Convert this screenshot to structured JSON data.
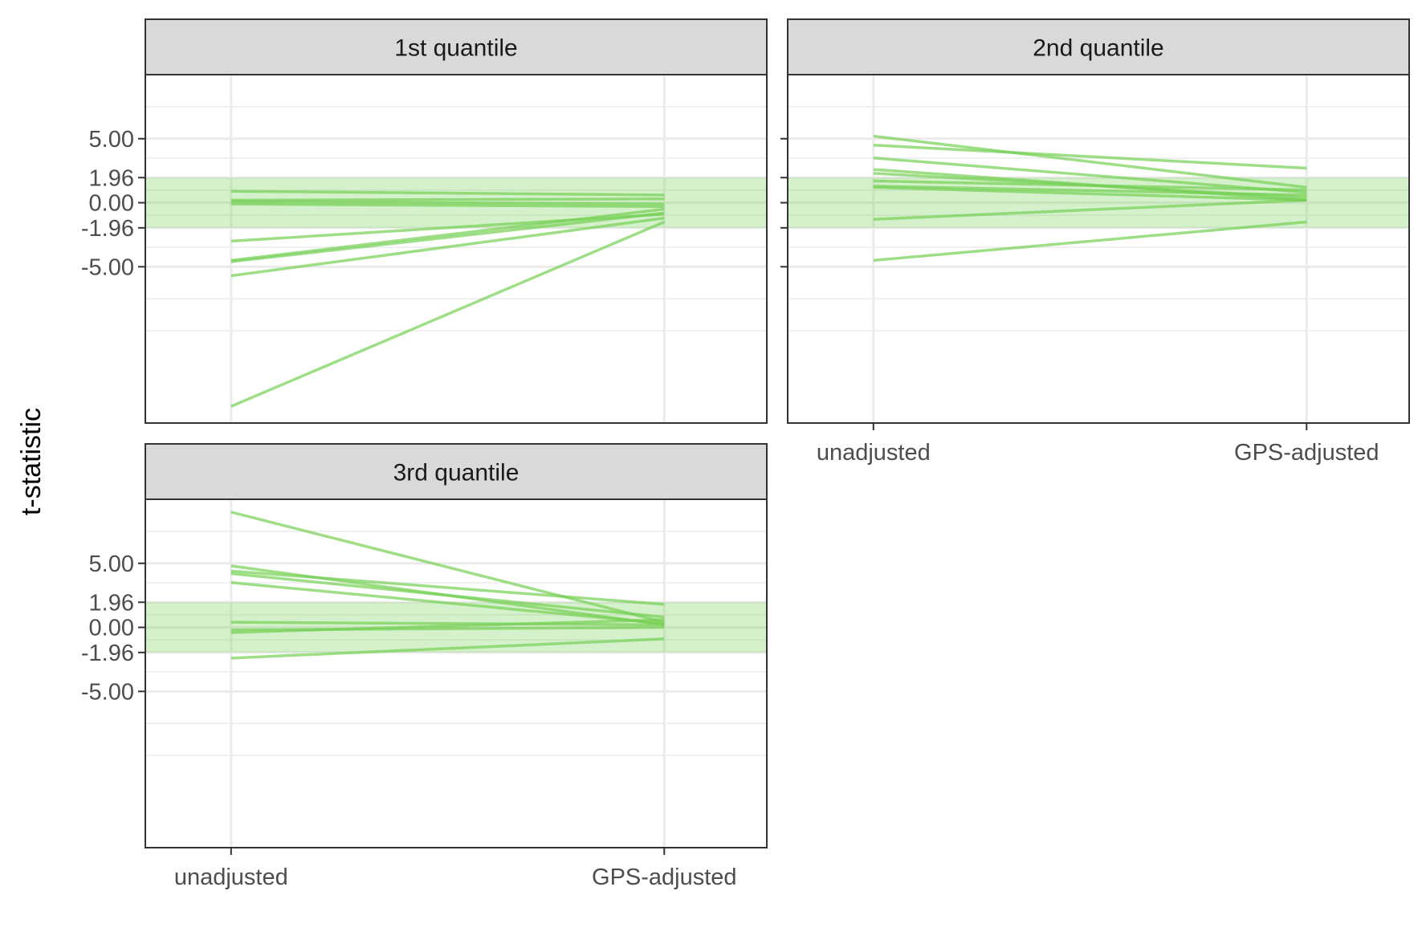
{
  "chart_data": {
    "type": "line",
    "ylabel": "t-statistic",
    "xlabel": "",
    "categories": [
      "unadjusted",
      "GPS-adjusted"
    ],
    "y_ticks": [
      5.0,
      1.96,
      0.0,
      -1.96,
      -5.0
    ],
    "y_tick_labels": [
      "5.00",
      "1.96",
      "0.00",
      "-1.96",
      "-5.00"
    ],
    "ylim": [
      -17.2,
      10.0
    ],
    "shaded_band": [
      -1.96,
      1.96
    ],
    "grid": true,
    "colors": {
      "line": "#75d054",
      "band": "#75d054",
      "strip_fill": "#d9d9d9",
      "panel_border": "#333333"
    },
    "panels": [
      {
        "title": "1st quantile",
        "lines": [
          [
            0.9,
            0.6
          ],
          [
            0.2,
            0.3
          ],
          [
            0.1,
            -0.1
          ],
          [
            -0.1,
            -0.3
          ],
          [
            -3.0,
            -0.9
          ],
          [
            -4.5,
            -0.5
          ],
          [
            -4.6,
            -0.8
          ],
          [
            -5.7,
            -1.2
          ],
          [
            -15.9,
            -1.5
          ]
        ]
      },
      {
        "title": "2nd quantile",
        "lines": [
          [
            5.2,
            1.2
          ],
          [
            4.5,
            2.7
          ],
          [
            3.5,
            0.8
          ],
          [
            2.6,
            0.2
          ],
          [
            2.3,
            0.4
          ],
          [
            1.7,
            1.0
          ],
          [
            1.3,
            0.6
          ],
          [
            1.2,
            0.2
          ],
          [
            -1.3,
            0.2
          ],
          [
            -4.5,
            -1.5
          ]
        ]
      },
      {
        "title": "3rd quantile",
        "lines": [
          [
            9.0,
            0.4
          ],
          [
            4.8,
            0.2
          ],
          [
            4.4,
            1.8
          ],
          [
            4.2,
            0.8
          ],
          [
            3.5,
            0.3
          ],
          [
            0.4,
            0.2
          ],
          [
            -0.2,
            0.0
          ],
          [
            -0.4,
            0.6
          ],
          [
            -2.4,
            -0.9
          ]
        ]
      }
    ]
  }
}
